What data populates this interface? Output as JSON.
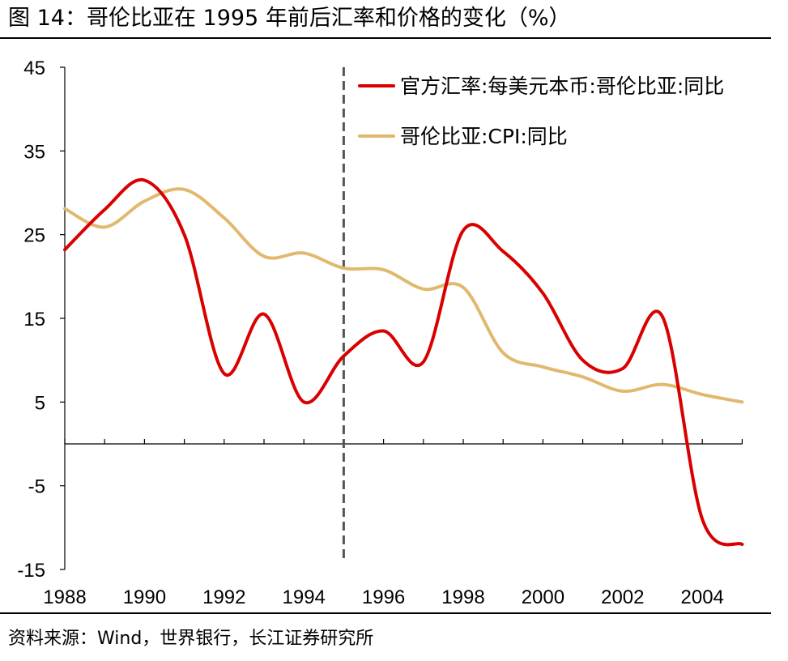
{
  "header": {
    "title": "图  14：哥伦比亚在 1995 年前后汇率和价格的变化（%）"
  },
  "footer": {
    "source": "资料来源：Wind，世界银行，长江证券研究所"
  },
  "chart_data": {
    "type": "line",
    "title": "哥伦比亚在 1995 年前后汇率和价格的变化（%）",
    "xlabel": "",
    "ylabel": "%",
    "xlim": [
      1988,
      2005
    ],
    "ylim": [
      -15,
      45
    ],
    "y_ticks": [
      45,
      35,
      25,
      15,
      5,
      -5,
      -15
    ],
    "x_ticks": [
      1988,
      1990,
      1992,
      1994,
      1996,
      1998,
      2000,
      2002,
      2004
    ],
    "y_tick_labels": [
      "45",
      "35",
      "25",
      "15",
      "5",
      "-5",
      "-15"
    ],
    "x_tick_labels": [
      "1988",
      "1990",
      "1992",
      "1994",
      "1996",
      "1998",
      "2000",
      "2002",
      "2004"
    ],
    "reference_line": {
      "x": 1995,
      "style": "dashed",
      "color": "#555555"
    },
    "grid": false,
    "legend_position": "top-right",
    "series": [
      {
        "name": "官方汇率:每美元本币:哥伦比亚:同比",
        "color": "#d90000",
        "x": [
          1988,
          1989,
          1990,
          1991,
          1992,
          1993,
          1994,
          1995,
          1996,
          1997,
          1998,
          1999,
          2000,
          2001,
          2002,
          2003,
          2004,
          2005
        ],
        "values": [
          23.2,
          28.0,
          31.5,
          25.0,
          8.4,
          15.5,
          5.0,
          10.5,
          13.5,
          9.8,
          25.5,
          23.0,
          18.0,
          10.0,
          9.0,
          15.2,
          -9.0,
          -12.0
        ]
      },
      {
        "name": "哥伦比亚:CPI:同比",
        "color": "#e1b96e",
        "x": [
          1988,
          1989,
          1990,
          1991,
          1992,
          1993,
          1994,
          1995,
          1996,
          1997,
          1998,
          1999,
          2000,
          2001,
          2002,
          2003,
          2004,
          2005
        ],
        "values": [
          28.1,
          25.9,
          29.0,
          30.4,
          27.0,
          22.4,
          22.8,
          21.0,
          20.8,
          18.5,
          18.7,
          10.9,
          9.2,
          8.0,
          6.3,
          7.1,
          5.9,
          5.0
        ]
      }
    ]
  }
}
